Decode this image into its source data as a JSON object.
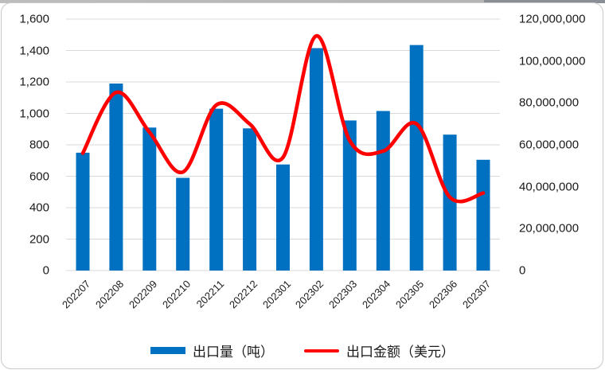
{
  "colors": {
    "bar_blue": "#0070C0",
    "line_red": "#FF0000",
    "gridline": "#D9D9D9",
    "axis_text": "#1A1A1A",
    "card_border": "#C9C9C9"
  },
  "chart_data": {
    "type": "bar",
    "subtype": "combo bar+smooth-line, dual axis",
    "categories": [
      "202207",
      "202208",
      "202209",
      "202210",
      "202211",
      "202212",
      "202301",
      "202302",
      "202303",
      "202304",
      "202305",
      "202306",
      "202307"
    ],
    "series": [
      {
        "name": "出口量（吨）",
        "type": "bar",
        "axis": "left",
        "color": "#0070C0",
        "values": [
          750,
          1190,
          910,
          590,
          1030,
          905,
          675,
          1415,
          955,
          1015,
          1435,
          865,
          705
        ]
      },
      {
        "name": "出口金额（美元）",
        "type": "line",
        "axis": "right",
        "color": "#FF0000",
        "values": [
          56000000,
          85000000,
          66000000,
          47000000,
          79000000,
          70000000,
          54000000,
          112000000,
          62000000,
          57000000,
          70000000,
          35000000,
          37000000
        ]
      }
    ],
    "left_axis": {
      "min": 0,
      "max": 1600,
      "step": 200,
      "tick_labels": [
        "1,600",
        "1,400",
        "1,200",
        "1,000",
        "800",
        "600",
        "400",
        "200",
        "0"
      ]
    },
    "right_axis": {
      "min": 0,
      "max": 120000000,
      "step": 20000000,
      "tick_labels": [
        "120,000,000",
        "100,000,000",
        "80,000,000",
        "60,000,000",
        "40,000,000",
        "20,000,000",
        "0"
      ]
    },
    "grid": true,
    "legend_position": "bottom"
  }
}
